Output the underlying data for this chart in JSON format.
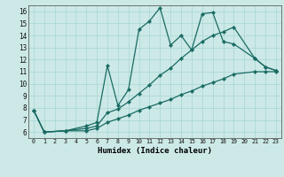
{
  "xlabel": "Humidex (Indice chaleur)",
  "xlim": [
    -0.5,
    23.5
  ],
  "ylim": [
    5.5,
    16.5
  ],
  "xticks": [
    0,
    1,
    2,
    3,
    4,
    5,
    6,
    7,
    8,
    9,
    10,
    11,
    12,
    13,
    14,
    15,
    16,
    17,
    18,
    19,
    20,
    21,
    22,
    23
  ],
  "yticks": [
    6,
    7,
    8,
    9,
    10,
    11,
    12,
    13,
    14,
    15,
    16
  ],
  "bg_color": "#cce9e7",
  "line_color": "#1a6b63",
  "grid_color": "#a8d5d1",
  "series1_x": [
    0,
    1,
    3,
    5,
    6,
    7,
    8,
    9,
    10,
    11,
    12,
    13,
    14,
    15,
    16,
    17,
    18,
    19,
    21,
    22,
    23
  ],
  "series1_y": [
    7.8,
    6.0,
    6.1,
    6.5,
    6.8,
    11.5,
    8.2,
    9.5,
    14.5,
    15.2,
    16.3,
    13.2,
    14.0,
    12.8,
    15.8,
    15.9,
    13.5,
    13.3,
    12.1,
    11.4,
    11.1
  ],
  "series2_x": [
    0,
    1,
    3,
    5,
    6,
    7,
    8,
    9,
    10,
    11,
    12,
    13,
    14,
    15,
    16,
    17,
    18,
    19,
    21,
    22,
    23
  ],
  "series2_y": [
    7.8,
    6.0,
    6.1,
    6.3,
    6.5,
    7.6,
    7.9,
    8.5,
    9.2,
    9.9,
    10.7,
    11.3,
    12.1,
    12.8,
    13.5,
    14.0,
    14.3,
    14.7,
    12.1,
    11.4,
    11.1
  ],
  "series3_x": [
    0,
    1,
    3,
    5,
    6,
    7,
    8,
    9,
    10,
    11,
    12,
    13,
    14,
    15,
    16,
    17,
    18,
    19,
    21,
    22,
    23
  ],
  "series3_y": [
    7.8,
    6.0,
    6.1,
    6.1,
    6.3,
    6.8,
    7.1,
    7.4,
    7.8,
    8.1,
    8.4,
    8.7,
    9.1,
    9.4,
    9.8,
    10.1,
    10.4,
    10.8,
    11.0,
    11.0,
    11.0
  ]
}
